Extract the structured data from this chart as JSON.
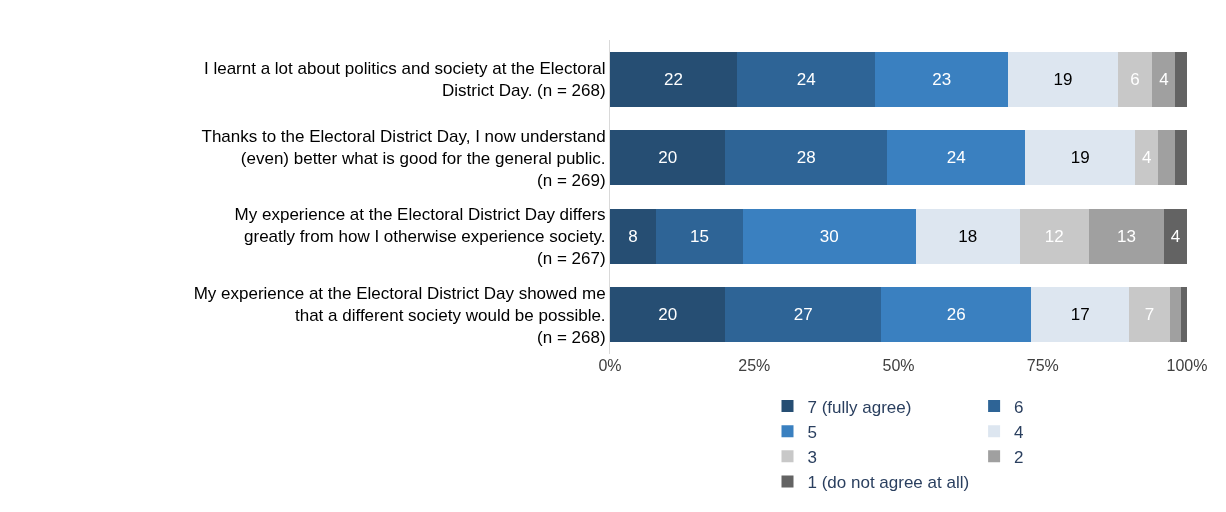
{
  "chart_data": {
    "type": "bar",
    "orientation": "horizontal",
    "stacked": true,
    "categories": [
      "I learnt a lot about politics and society at the Electoral\nDistrict Day. (n = 268)",
      "Thanks to the Electoral District Day, I now understand\n(even) better what is good for the general public.\n(n = 269)",
      "My experience at the Electoral District Day differs\ngreatly from how I otherwise experience society.\n(n = 267)",
      "My experience at the Electoral District Day showed me\nthat a different society would be possible.\n(n = 268)"
    ],
    "series": [
      {
        "name": "7 (fully agree)",
        "color": "#264e73",
        "values": [
          22,
          20,
          8,
          20
        ],
        "value_labels": [
          "22",
          "20",
          "8",
          "20"
        ]
      },
      {
        "name": "6",
        "color": "#2e6496",
        "values": [
          24,
          28,
          15,
          27
        ],
        "value_labels": [
          "24",
          "28",
          "15",
          "27"
        ]
      },
      {
        "name": "5",
        "color": "#3a80c0",
        "values": [
          23,
          24,
          30,
          26
        ],
        "value_labels": [
          "23",
          "24",
          "30",
          "26"
        ]
      },
      {
        "name": "4",
        "color": "#dde6f0",
        "values": [
          19,
          19,
          18,
          17
        ],
        "value_labels": [
          "19",
          "19",
          "18",
          "17"
        ]
      },
      {
        "name": "3",
        "color": "#c8c8c8",
        "values": [
          6,
          4,
          12,
          7
        ],
        "value_labels": [
          "6",
          "4",
          "12",
          "7"
        ]
      },
      {
        "name": "2",
        "color": "#a0a0a0",
        "values": [
          4,
          3,
          13,
          2
        ],
        "value_labels": [
          "4",
          null,
          "13",
          null
        ]
      },
      {
        "name": "1 (do not agree at all)",
        "color": "#636363",
        "values": [
          2,
          2,
          4,
          1
        ],
        "value_labels": [
          null,
          null,
          "4",
          null
        ]
      }
    ],
    "xlim": [
      0,
      100
    ],
    "xticks": [
      {
        "value": 0,
        "label": "0%"
      },
      {
        "value": 25,
        "label": "25%"
      },
      {
        "value": 50,
        "label": "50%"
      },
      {
        "value": 75,
        "label": "75%"
      },
      {
        "value": 100,
        "label": "100%"
      }
    ],
    "grid": false,
    "legend": "bottom"
  }
}
